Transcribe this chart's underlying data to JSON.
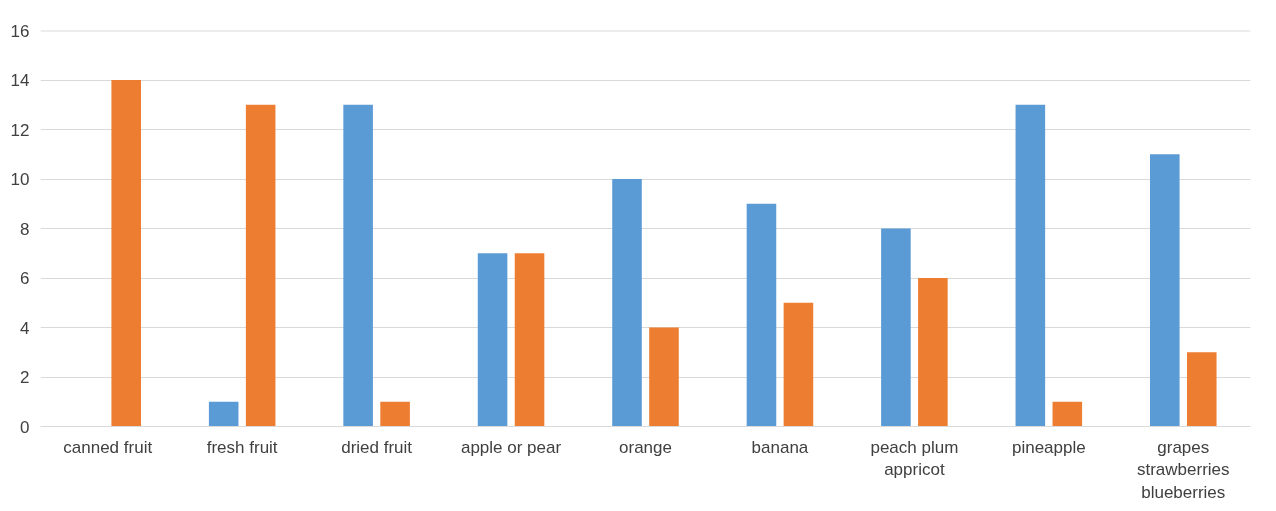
{
  "chart_data": {
    "type": "bar",
    "categories": [
      "canned fruit",
      "fresh fruit",
      "dried fruit",
      "apple or pear",
      "orange",
      "banana",
      "peach plum\nappricot",
      "pineapple",
      "grapes\nstrawberries\nblueberries"
    ],
    "series": [
      {
        "color": "#5b9bd5",
        "values": [
          0,
          1,
          13,
          7,
          10,
          9,
          8,
          13,
          11
        ]
      },
      {
        "color": "#ed7d31",
        "values": [
          14,
          13,
          1,
          7,
          4,
          5,
          6,
          1,
          3
        ]
      }
    ],
    "ylim": [
      0,
      16
    ],
    "yticks": [
      0,
      2,
      4,
      6,
      8,
      10,
      12,
      14,
      16
    ],
    "grid": "y"
  }
}
